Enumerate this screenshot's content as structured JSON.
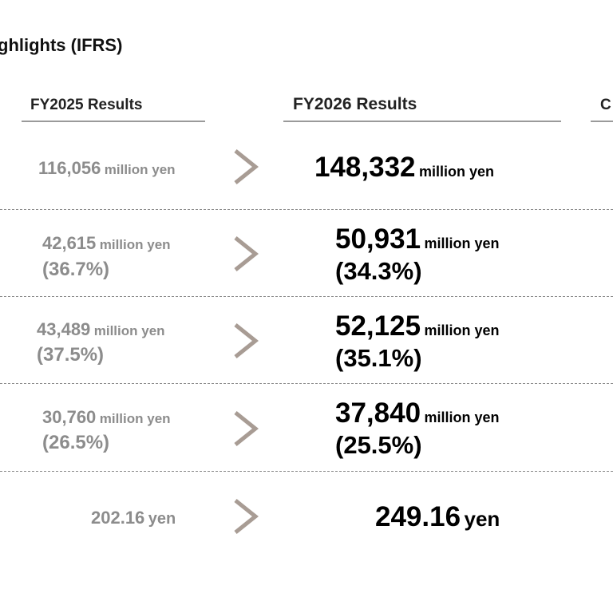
{
  "header": {
    "title": "ghlights (IFRS)"
  },
  "columns": {
    "prev": "FY2025 Results",
    "cur": "FY2026 Results",
    "next_partial": "C"
  },
  "rows": [
    {
      "prev_value": "116,056",
      "prev_unit": "million yen",
      "prev_pct": "",
      "cur_value": "148,332",
      "cur_unit": "million yen",
      "cur_pct": ""
    },
    {
      "prev_value": "42,615",
      "prev_unit": "million yen",
      "prev_pct": "(36.7%)",
      "cur_value": "50,931",
      "cur_unit": "million yen",
      "cur_pct": "(34.3%)"
    },
    {
      "prev_value": "43,489",
      "prev_unit": "million yen",
      "prev_pct": "(37.5%)",
      "cur_value": "52,125",
      "cur_unit": "million yen",
      "cur_pct": "(35.1%)"
    },
    {
      "prev_value": "30,760",
      "prev_unit": "million yen",
      "prev_pct": "(26.5%)",
      "cur_value": "37,840",
      "cur_unit": "million yen",
      "cur_pct": "(25.5%)"
    },
    {
      "prev_value": "202.16",
      "prev_unit": "yen",
      "prev_pct": "",
      "cur_value": "249.16",
      "cur_unit": "yen",
      "cur_pct": ""
    }
  ],
  "icons": {
    "arrow": "chevron-right-icon"
  },
  "colors": {
    "prev_text": "#8c8c8c",
    "cur_text": "#000000",
    "arrow": "#a89c94",
    "rule": "#9a9a9a"
  }
}
